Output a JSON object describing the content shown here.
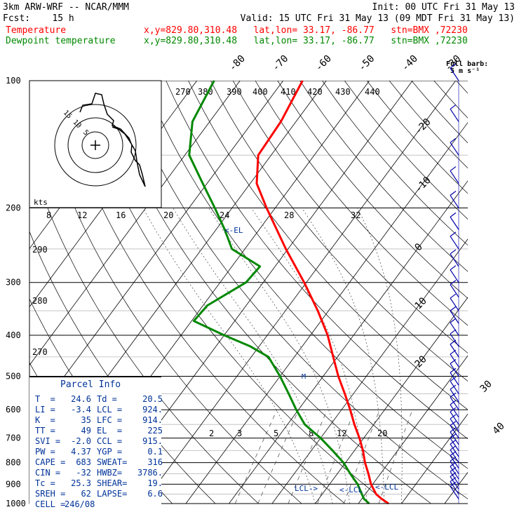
{
  "header": {
    "line1_left": "3km ARW-WRF -- NCAR/MMM",
    "line1_right": "Init: 00 UTC Fri 31 May 13",
    "line2_left": "Fcst:    15 h",
    "line2_right": "Valid: 15 UTC Fri 31 May 13 (09 MDT Fri 31 May 13)",
    "temp_label": "Temperature",
    "temp_meta": "x,y=829.80,310.48   lat,lon= 33.17, -86.77   stn=BMX ,72230",
    "dew_label": "Dewpoint temperature",
    "dew_meta": "x,y=829.80,310.48   lat,lon= 33.17, -86.77   stn=BMX ,72230"
  },
  "colors": {
    "temperature": "#ff0000",
    "dewpoint": "#008800",
    "text_blue": "#003399",
    "wind": "#0000aa"
  },
  "barb_key": {
    "line1": "Full barb:",
    "line2": "5 m s⁻¹"
  },
  "chart_data": {
    "type": "skew-t",
    "pressure_levels": [
      100,
      200,
      300,
      400,
      500,
      600,
      700,
      800,
      900,
      1000
    ],
    "isotherm_labels": [
      -80,
      -70,
      -60,
      -50,
      -40,
      -30,
      -20,
      -10,
      0,
      10,
      20,
      30,
      40
    ],
    "theta_labels": [
      270,
      380,
      390,
      400,
      410,
      420,
      430,
      440
    ],
    "hodo": {
      "units": "kts",
      "rings": [
        5,
        10,
        15
      ]
    },
    "hodo_speed_labels": [
      "8",
      "12",
      "16",
      "20",
      "24",
      "28",
      "32"
    ],
    "side_theta_labels": [
      "290",
      "280",
      "270"
    ],
    "mixing_ratio_labels": [
      "2",
      "3",
      "5",
      "8",
      "12",
      "20"
    ],
    "markers": {
      "el": "<-EL",
      "lcl1": "LCL->",
      "lcl2": "<-LCL",
      "lcl3": "<-LCL",
      "m": "M"
    },
    "temperature": [
      {
        "p": 1000,
        "t": 27.0
      },
      {
        "p": 975,
        "t": 24.6
      },
      {
        "p": 950,
        "t": 22.5
      },
      {
        "p": 900,
        "t": 19.6
      },
      {
        "p": 850,
        "t": 17.2
      },
      {
        "p": 800,
        "t": 14.5
      },
      {
        "p": 750,
        "t": 12.0
      },
      {
        "p": 700,
        "t": 9.0
      },
      {
        "p": 650,
        "t": 5.5
      },
      {
        "p": 600,
        "t": 2.0
      },
      {
        "p": 550,
        "t": -2.0
      },
      {
        "p": 500,
        "t": -6.5
      },
      {
        "p": 450,
        "t": -11.0
      },
      {
        "p": 400,
        "t": -16.0
      },
      {
        "p": 350,
        "t": -22.5
      },
      {
        "p": 300,
        "t": -30.5
      },
      {
        "p": 250,
        "t": -40.5
      },
      {
        "p": 200,
        "t": -52.0
      },
      {
        "p": 175,
        "t": -58.5
      },
      {
        "p": 150,
        "t": -63.0
      },
      {
        "p": 125,
        "t": -63.5
      },
      {
        "p": 100,
        "t": -65.5
      }
    ],
    "dewpoint": [
      {
        "p": 1000,
        "t": 22.5
      },
      {
        "p": 975,
        "t": 20.5
      },
      {
        "p": 950,
        "t": 19.2
      },
      {
        "p": 900,
        "t": 16.5
      },
      {
        "p": 850,
        "t": 13.0
      },
      {
        "p": 800,
        "t": 9.5
      },
      {
        "p": 750,
        "t": 5.0
      },
      {
        "p": 700,
        "t": 0.0
      },
      {
        "p": 650,
        "t": -6.0
      },
      {
        "p": 600,
        "t": -10.5
      },
      {
        "p": 550,
        "t": -15.0
      },
      {
        "p": 500,
        "t": -20.0
      },
      {
        "p": 450,
        "t": -26.0
      },
      {
        "p": 425,
        "t": -32.0
      },
      {
        "p": 400,
        "t": -40.0
      },
      {
        "p": 370,
        "t": -49.5
      },
      {
        "p": 340,
        "t": -49.0
      },
      {
        "p": 300,
        "t": -44.0
      },
      {
        "p": 275,
        "t": -43.5
      },
      {
        "p": 250,
        "t": -53.0
      },
      {
        "p": 225,
        "t": -58.0
      },
      {
        "p": 200,
        "t": -64.0
      },
      {
        "p": 175,
        "t": -71.0
      },
      {
        "p": 150,
        "t": -79.0
      },
      {
        "p": 125,
        "t": -84.0
      },
      {
        "p": 100,
        "t": -86.0
      }
    ],
    "ylim": [
      1000,
      100
    ],
    "xlim": [
      -40,
      50
    ]
  },
  "parcel": {
    "title": "Parcel Info",
    "rows": [
      [
        "T  =",
        "24.6",
        "Td =",
        "20.5"
      ],
      [
        "LI =",
        "-3.4",
        "LCL =",
        "924."
      ],
      [
        "K  =",
        "35",
        "LFC =",
        "914."
      ],
      [
        "TT =",
        "49",
        "EL  =",
        "225"
      ],
      [
        "SVI =",
        "-2.0",
        "CCL =",
        "915."
      ],
      [
        "PW =",
        "4.37",
        "YGP =",
        "0.1"
      ],
      [
        "CAPE =",
        "683",
        "SWEAT=",
        "316"
      ],
      [
        "CIN =",
        "-32",
        "HWBZ=",
        "3786."
      ],
      [
        "Tc =",
        "25.3",
        "SHEAR=",
        "19."
      ],
      [
        "SREH =",
        "62",
        "LAPSE=",
        "6.6"
      ],
      [
        "CELL =",
        "246/08",
        "",
        ""
      ]
    ]
  }
}
